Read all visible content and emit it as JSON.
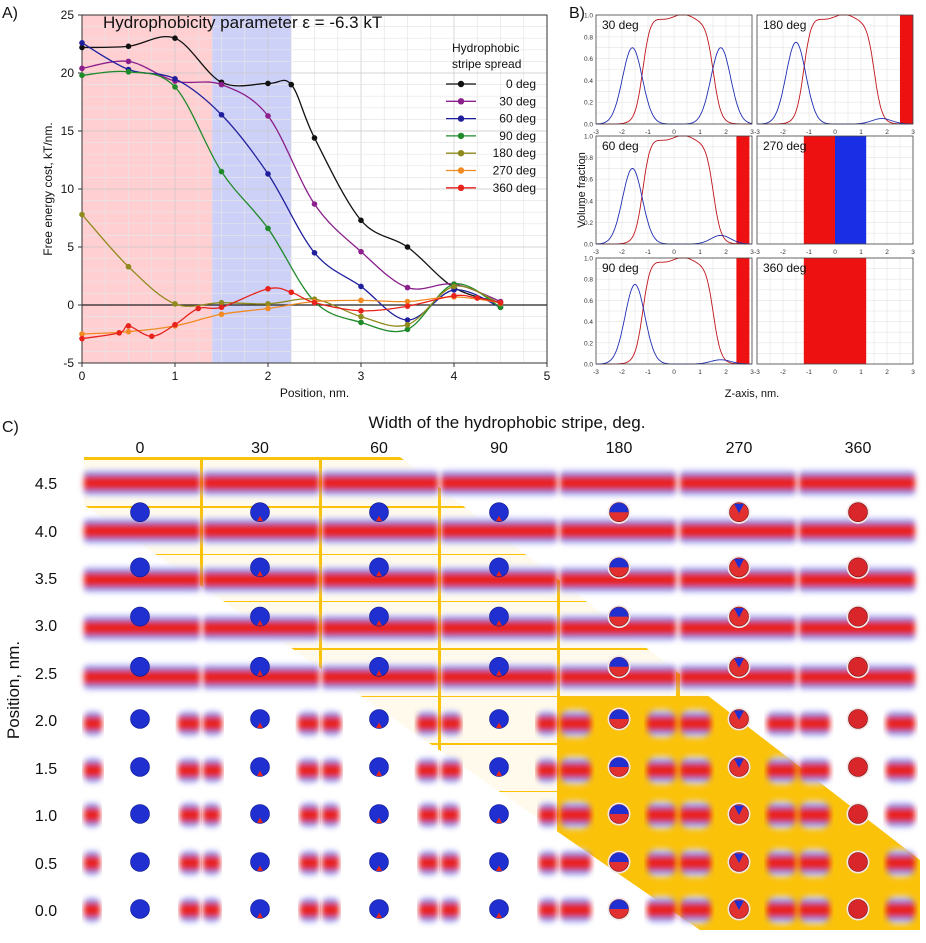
{
  "panel_labels": {
    "a": "A)",
    "b": "B)",
    "c": "C)"
  },
  "chart_data": [
    {
      "id": "A",
      "type": "line",
      "title": "Hydrophobicity parameter ε = -6.3 kT",
      "xlabel": "Position, nm.",
      "ylabel": "Free energy cost, kT/nm.",
      "xlim": [
        0,
        5
      ],
      "ylim": [
        -5,
        25
      ],
      "xticks": [
        "0",
        "1",
        "2",
        "3",
        "4",
        "5"
      ],
      "yticks": [
        "-5",
        "0",
        "5",
        "10",
        "15",
        "20",
        "25"
      ],
      "grid": true,
      "shaded_regions": [
        {
          "x": [
            0,
            1.4
          ],
          "color": "#ffcfd2"
        },
        {
          "x": [
            1.4,
            2.25
          ],
          "color": "#cdd0f7"
        }
      ],
      "legend_title": "Hydrophobic stripe spread",
      "legend_title_lines": [
        "Hydrophobic",
        "stripe spread"
      ],
      "legend_position": "top-right",
      "series": [
        {
          "name": "0 deg",
          "color": "#111111",
          "x": [
            0,
            0.5,
            1,
            1.5,
            2,
            2.25,
            2.5,
            3,
            3.5,
            4,
            4.5
          ],
          "y": [
            22.2,
            22.3,
            23.0,
            19.2,
            19.1,
            19.0,
            14.4,
            7.3,
            5.0,
            1.5,
            0.2
          ]
        },
        {
          "name": "30 deg",
          "color": "#8b1f8b",
          "x": [
            0,
            0.5,
            1,
            1.5,
            2,
            2.5,
            3,
            3.5,
            4,
            4.5
          ],
          "y": [
            20.4,
            21.0,
            19.3,
            19.0,
            16.3,
            8.7,
            4.6,
            1.5,
            1.8,
            0.3
          ]
        },
        {
          "name": "60 deg",
          "color": "#1f1f9e",
          "x": [
            0,
            0.5,
            1,
            1.5,
            2,
            2.5,
            3,
            3.5,
            4,
            4.5
          ],
          "y": [
            22.6,
            20.3,
            19.5,
            16.4,
            11.3,
            4.5,
            1.6,
            -1.3,
            1.3,
            -0.2
          ]
        },
        {
          "name": "90 deg",
          "color": "#1f8a2a",
          "x": [
            0,
            0.5,
            1,
            1.5,
            2,
            2.5,
            3,
            3.5,
            4,
            4.5
          ],
          "y": [
            19.8,
            20.1,
            18.8,
            11.5,
            6.6,
            0.3,
            -1.5,
            -2.1,
            1.8,
            -0.2
          ]
        },
        {
          "name": "180 deg",
          "color": "#8f8a1d",
          "x": [
            0,
            0.5,
            1,
            1.5,
            2,
            2.5,
            3,
            3.5,
            4,
            4.5
          ],
          "y": [
            7.8,
            3.3,
            0.1,
            0.2,
            0.1,
            0.5,
            -1.0,
            -1.7,
            1.6,
            0.1
          ]
        },
        {
          "name": "270 deg",
          "color": "#f28a22",
          "x": [
            0,
            0.5,
            1,
            1.5,
            2,
            2.5,
            3,
            3.5,
            4,
            4.5
          ],
          "y": [
            -2.5,
            -2.3,
            -1.8,
            -0.8,
            -0.3,
            0.3,
            0.4,
            0.3,
            0.7,
            0.2
          ]
        },
        {
          "name": "360 deg",
          "color": "#e8231c",
          "x": [
            0,
            0.4,
            0.5,
            0.75,
            1,
            1.25,
            1.5,
            2,
            2.25,
            2.5,
            3,
            3.5,
            4,
            4.25,
            4.5
          ],
          "y": [
            -2.9,
            -2.4,
            -1.8,
            -2.7,
            -1.7,
            -0.3,
            -0.2,
            1.4,
            1.1,
            0.2,
            -0.5,
            -0.1,
            0.8,
            0.6,
            0.2
          ]
        }
      ]
    },
    {
      "id": "B",
      "type": "line",
      "xlabel": "Z-axis, nm.",
      "ylabel": "Volume fraction",
      "xlim": [
        -3,
        3
      ],
      "ylim": [
        0,
        1
      ],
      "xticks": [
        "-3",
        "-2",
        "-1",
        "0",
        "1",
        "2",
        "3"
      ],
      "yticks": [
        "0.0",
        "0.2",
        "0.4",
        "0.6",
        "0.8",
        "1.0"
      ],
      "subplots": [
        {
          "label": "30 deg",
          "blue_peaks": [
            [
              -1.6,
              0.7
            ],
            [
              1.8,
              0.7
            ]
          ],
          "red_range": [
            -1.2,
            1.5
          ],
          "red_bands": [],
          "blue_bands": []
        },
        {
          "label": "180 deg",
          "blue_peaks": [
            [
              -1.5,
              0.75
            ],
            [
              1.8,
              0.05
            ]
          ],
          "red_range": [
            -1.2,
            1.5
          ],
          "red_bands": [
            [
              2.5,
              3.0
            ]
          ],
          "blue_bands": []
        },
        {
          "label": "60 deg",
          "blue_peaks": [
            [
              -1.6,
              0.7
            ],
            [
              1.8,
              0.08
            ]
          ],
          "red_range": [
            -1.2,
            1.5
          ],
          "red_bands": [
            [
              2.4,
              2.9
            ]
          ],
          "blue_bands": []
        },
        {
          "label": "270 deg",
          "blue_peaks": [],
          "red_range": null,
          "red_bands": [
            [
              -1.2,
              0.0
            ]
          ],
          "blue_bands": [
            [
              0.0,
              1.2
            ]
          ]
        },
        {
          "label": "90 deg",
          "blue_peaks": [
            [
              -1.5,
              0.75
            ],
            [
              1.8,
              0.04
            ]
          ],
          "red_range": [
            -1.2,
            1.5
          ],
          "red_bands": [
            [
              2.4,
              2.9
            ]
          ],
          "blue_bands": []
        },
        {
          "label": "360 deg",
          "blue_peaks": [],
          "red_range": null,
          "red_bands": [
            [
              -1.2,
              1.2
            ]
          ],
          "blue_bands": []
        }
      ]
    },
    {
      "id": "C",
      "type": "heatmap",
      "title": "Width of the hydrophobic stripe, deg.",
      "ylabel": "Position, nm.",
      "columns": [
        "0",
        "30",
        "60",
        "90",
        "180",
        "270",
        "360"
      ],
      "rows": [
        "4.5",
        "4.0",
        "3.5",
        "3.0",
        "2.5",
        "2.0",
        "1.5",
        "1.0",
        "0.5",
        "0.0"
      ]
    }
  ]
}
